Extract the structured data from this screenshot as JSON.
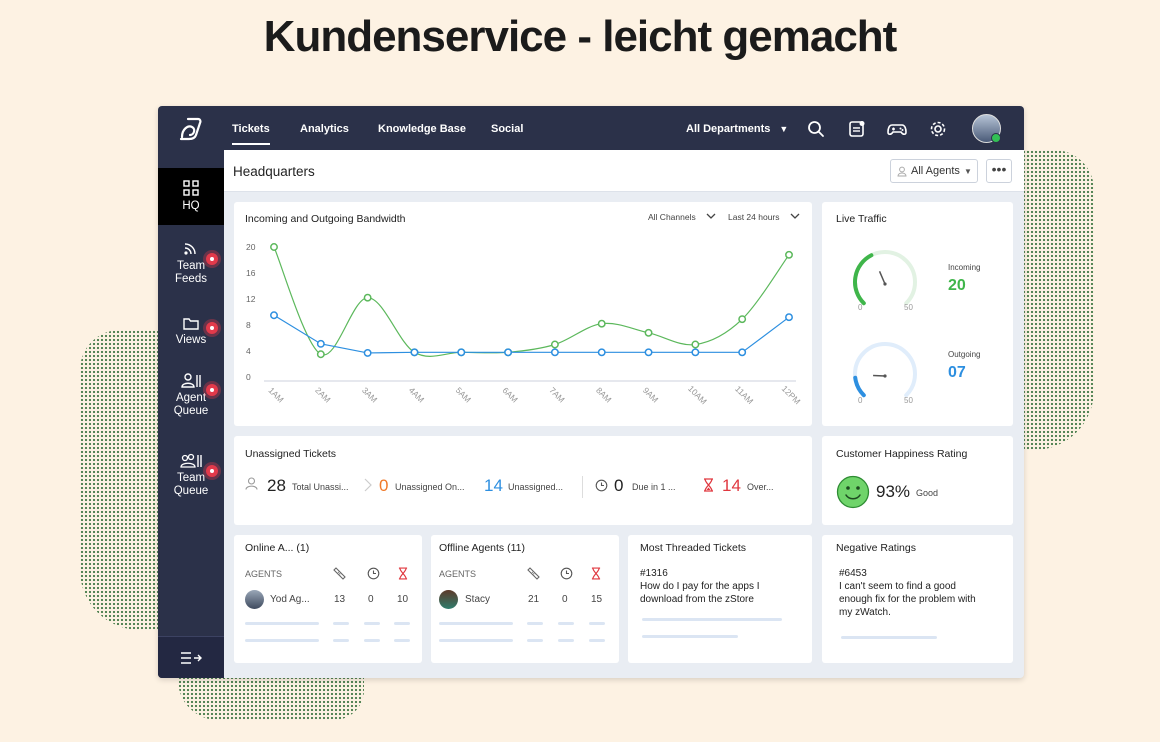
{
  "headline": "Kundenservice - leicht gemacht",
  "topnav": {
    "tabs": [
      {
        "label": "Tickets",
        "active": true
      },
      {
        "label": "Analytics",
        "active": false
      },
      {
        "label": "Knowledge Base",
        "active": false
      },
      {
        "label": "Social",
        "active": false
      }
    ],
    "department": "All Departments",
    "icons": [
      "search-icon",
      "notes-icon",
      "gamepad-icon",
      "gear-icon"
    ]
  },
  "sidebar": {
    "items": [
      {
        "label_lines": [
          "HQ"
        ],
        "icon": "grid-icon",
        "active": true
      },
      {
        "label_lines": [
          "Team",
          "Feeds"
        ],
        "icon": "rss-icon",
        "badge": true
      },
      {
        "label_lines": [
          "Views"
        ],
        "icon": "folder-icon",
        "badge": true
      },
      {
        "label_lines": [
          "Agent",
          "Queue"
        ],
        "icon": "agent-queue-icon",
        "badge": true
      },
      {
        "label_lines": [
          "Team",
          "Queue"
        ],
        "icon": "team-queue-icon",
        "badge": true
      }
    ],
    "collapse_icon": "collapse-icon"
  },
  "header": {
    "title": "Headquarters",
    "agent_filter": "All Agents",
    "more": "•••"
  },
  "bandwidth": {
    "title": "Incoming and Outgoing Bandwidth",
    "channel_filter": "All Channels",
    "time_filter": "Last 24 hours"
  },
  "chart_data": {
    "type": "line",
    "categories": [
      "1AM",
      "2AM",
      "3AM",
      "4AM",
      "5AM",
      "6AM",
      "7AM",
      "8AM",
      "9AM",
      "10AM",
      "11AM",
      "12PM"
    ],
    "y_ticks": [
      0,
      4,
      8,
      12,
      16,
      20
    ],
    "ylim": [
      0,
      20
    ],
    "grid": false,
    "series": [
      {
        "color": "#5cb85c",
        "values": [
          20,
          3.5,
          12.2,
          3.8,
          3.8,
          3.8,
          5,
          8.2,
          6.8,
          5,
          8.9,
          18.8
        ]
      },
      {
        "color": "#2d8fe0",
        "values": [
          9.5,
          5.1,
          3.7,
          3.8,
          3.8,
          3.8,
          3.8,
          3.8,
          3.8,
          3.8,
          3.8,
          9.2
        ]
      }
    ]
  },
  "live_traffic": {
    "title": "Live Traffic",
    "incoming": {
      "label": "Incoming",
      "value": "20",
      "min": "0",
      "max": "50",
      "color": "#3fb54a",
      "fraction": 0.4
    },
    "outgoing": {
      "label": "Outgoing",
      "value": "07",
      "min": "0",
      "max": "50",
      "color": "#2d8fe0",
      "fraction": 0.14
    }
  },
  "unassigned": {
    "title": "Unassigned Tickets",
    "stats": [
      {
        "value": "28",
        "label": "Total Unassi...",
        "color": "#222"
      },
      {
        "value": "0",
        "label": "Unassigned On...",
        "color": "#f07a2a"
      },
      {
        "value": "14",
        "label": "Unassigned...",
        "color": "#2d8fe0"
      },
      {
        "value": "0",
        "label": "Due in 1 ...",
        "color": "#222"
      },
      {
        "value": "14",
        "label": "Over...",
        "color": "#e0373f"
      }
    ]
  },
  "happiness": {
    "title": "Customer Happiness Rating",
    "value": "93%",
    "label": "Good"
  },
  "online_agents": {
    "title": "Online A... (1)",
    "col_label": "AGENTS",
    "rows": [
      {
        "name": "Yod Ag...",
        "a": "13",
        "b": "0",
        "c": "10"
      }
    ]
  },
  "offline_agents": {
    "title": "Offline Agents (11)",
    "col_label": "AGENTS",
    "rows": [
      {
        "name": "Stacy",
        "a": "21",
        "b": "0",
        "c": "15"
      }
    ]
  },
  "threaded": {
    "title": "Most Threaded Tickets",
    "ticket_id": "#1316",
    "lines": [
      "How do I pay for the apps I",
      "download from the zStore"
    ]
  },
  "negative": {
    "title": "Negative Ratings",
    "ticket_id": "#6453",
    "lines": [
      "I can't seem to find a good",
      "enough fix for the problem with",
      "my zWatch."
    ]
  }
}
